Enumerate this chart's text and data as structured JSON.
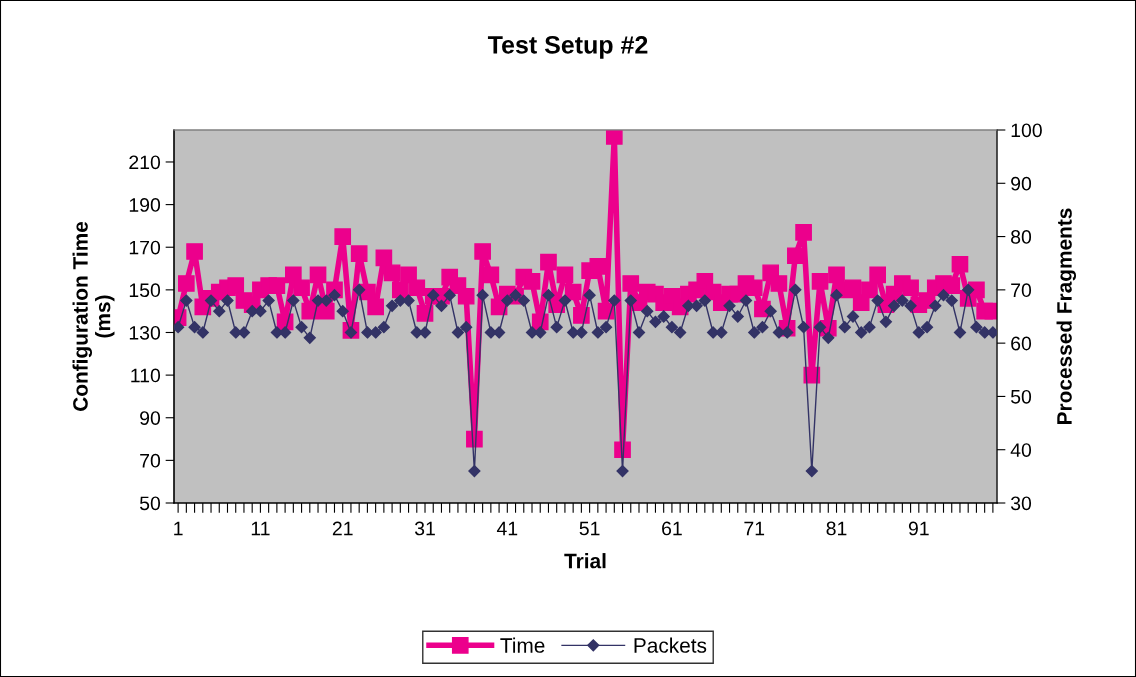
{
  "chart_data": {
    "type": "line",
    "title": "Test Setup #2",
    "xlabel": "Trial",
    "ylabel": "Configuration Time\n(ms)",
    "y2label": "Processed Fragments",
    "categories": [
      "1",
      null,
      null,
      null,
      null,
      null,
      null,
      null,
      null,
      null,
      "11",
      null,
      null,
      null,
      null,
      null,
      null,
      null,
      null,
      null,
      "21",
      null,
      null,
      null,
      null,
      null,
      null,
      null,
      null,
      null,
      "31",
      null,
      null,
      null,
      null,
      null,
      null,
      null,
      null,
      null,
      "41",
      null,
      null,
      null,
      null,
      null,
      null,
      null,
      null,
      null,
      "51",
      null,
      null,
      null,
      null,
      null,
      null,
      null,
      null,
      null,
      "61",
      null,
      null,
      null,
      null,
      null,
      null,
      null,
      null,
      null,
      "71",
      null,
      null,
      null,
      null,
      null,
      null,
      null,
      null,
      null,
      "81",
      null,
      null,
      null,
      null,
      null,
      null,
      null,
      null,
      null,
      "91",
      null,
      null,
      null,
      null,
      null,
      null,
      null,
      null,
      null
    ],
    "series": [
      {
        "name": "Time",
        "color": "#ec008c",
        "marker": "square",
        "values": [
          137,
          153,
          168,
          142,
          146,
          149,
          151,
          152,
          145,
          143,
          150,
          152,
          152,
          135,
          157,
          151,
          140,
          157,
          140,
          150,
          175,
          131,
          167,
          149,
          142,
          165,
          158,
          150,
          157,
          151,
          139,
          147,
          147,
          156,
          152,
          147,
          80,
          168,
          157,
          142,
          148,
          147,
          156,
          154,
          135,
          163,
          143,
          157,
          149,
          138,
          159,
          161,
          140,
          222,
          75,
          153,
          144,
          149,
          148,
          144,
          147,
          142,
          148,
          150,
          154,
          149,
          144,
          148,
          148,
          153,
          151,
          141,
          158,
          153,
          132,
          166,
          177,
          110,
          154,
          132,
          157,
          150,
          151,
          144,
          150,
          157,
          143,
          148,
          153,
          151,
          143,
          145,
          151,
          153,
          152,
          162,
          146,
          150,
          140,
          140
        ]
      },
      {
        "name": "Packets",
        "color": "#333366",
        "marker": "diamond",
        "axis": "y2",
        "values": [
          63,
          68,
          63,
          62,
          68,
          66,
          68,
          62,
          62,
          66,
          66,
          68,
          62,
          62,
          68,
          63,
          61,
          68,
          68,
          69,
          66,
          62,
          70,
          62,
          62,
          63,
          67,
          68,
          68,
          62,
          62,
          69,
          67,
          69,
          62,
          63,
          36,
          69,
          62,
          62,
          68,
          69,
          68,
          62,
          62,
          69,
          63,
          68,
          62,
          62,
          69,
          62,
          63,
          68,
          36,
          68,
          62,
          66,
          64,
          65,
          63,
          62,
          67,
          67,
          68,
          62,
          62,
          67,
          65,
          68,
          62,
          63,
          66,
          62,
          62,
          70,
          63,
          36,
          63,
          61,
          69,
          63,
          65,
          62,
          63,
          68,
          64,
          67,
          68,
          67,
          62,
          63,
          67,
          69,
          68,
          62,
          70,
          63,
          62,
          62
        ]
      }
    ],
    "ylim": [
      50,
      225
    ],
    "yticks": [
      50,
      70,
      90,
      110,
      130,
      150,
      170,
      190,
      210
    ],
    "y2lim": [
      30,
      100
    ],
    "y2ticks": [
      30,
      40,
      50,
      60,
      70,
      80,
      90,
      100
    ],
    "legend": "bottom"
  }
}
